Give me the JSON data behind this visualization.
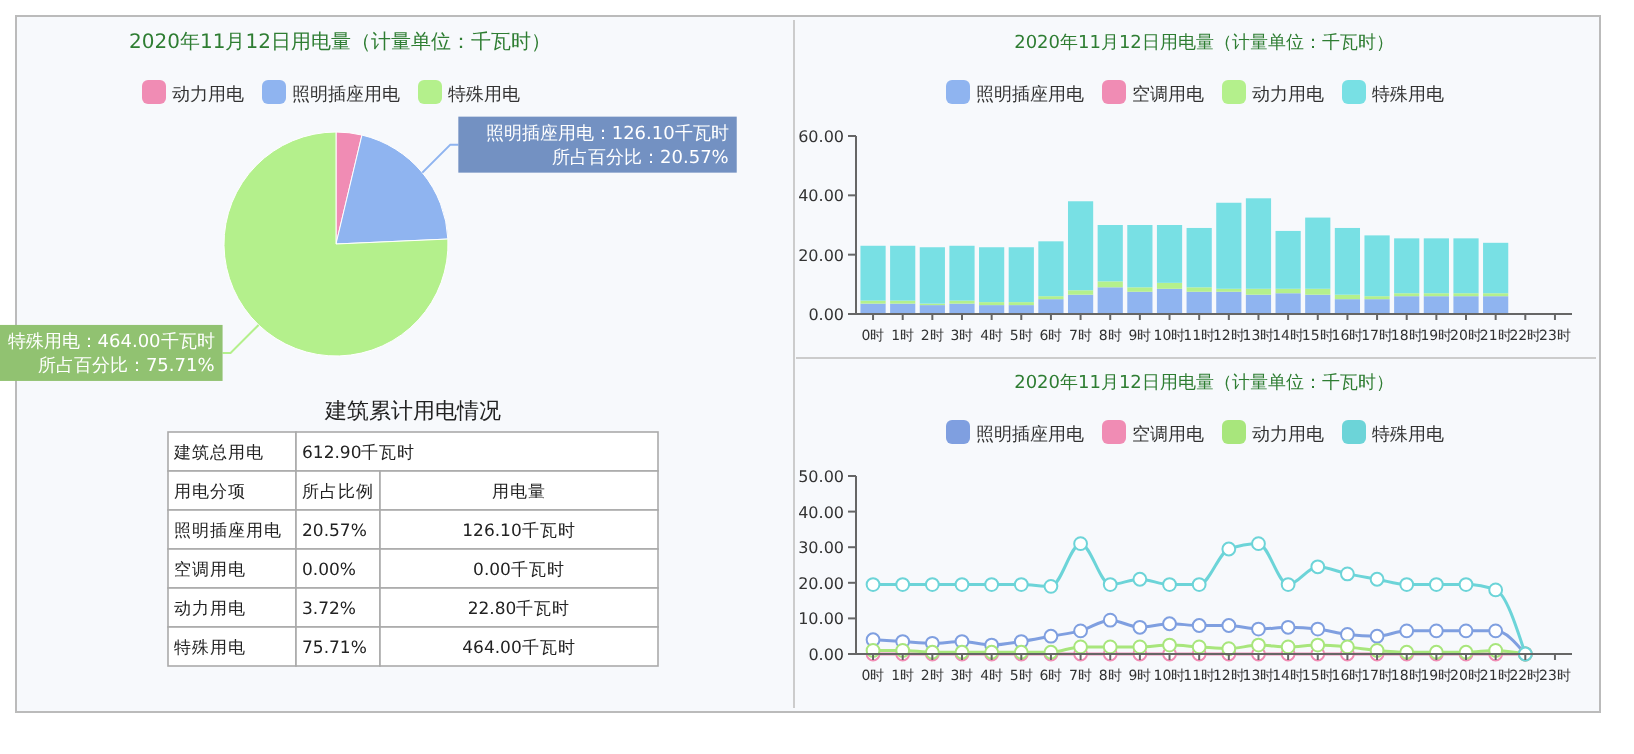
{
  "chart_data": [
    {
      "type": "pie",
      "title": "2020年11月12日用电量（计量单位：千瓦时）",
      "categories": [
        "动力用电",
        "照明插座用电",
        "特殊用电"
      ],
      "values": [
        22.8,
        126.1,
        464.0
      ],
      "colors": [
        "#f08cb4",
        "#8fb4f0",
        "#b4f08c"
      ],
      "value_labels": [
        null,
        "照明插座用电：126.10千瓦时",
        "特殊用电：464.00千瓦时"
      ],
      "annotations": [
        "所占百分比：20.57%",
        "所占百分比：75.71%"
      ],
      "legend": "top"
    },
    {
      "type": "other",
      "title": "建筑累计用电情况",
      "annotations": [
        "建筑总用电",
        "612.90千瓦时",
        "用电分项",
        "所占比例",
        "用电量",
        "照明插座用电",
        "20.57%",
        "126.10千瓦时",
        "空调用电",
        "0.00%",
        "0.00千瓦时",
        "动力用电",
        "3.72%",
        "22.80千瓦时",
        "特殊用电",
        "75.71%",
        "464.00千瓦时"
      ]
    },
    {
      "type": "bar",
      "title": "2020年11月12日用电量（计量单位：千瓦时）",
      "stacked": true,
      "legend": "top",
      "categories": [
        "0时",
        "1时",
        "2时",
        "3时",
        "4时",
        "5时",
        "6时",
        "7时",
        "8时",
        "9时",
        "10时",
        "11时",
        "12时",
        "13时",
        "14时",
        "15时",
        "16时",
        "17时",
        "18时",
        "19时",
        "20时",
        "21时",
        "22时",
        "23时"
      ],
      "ylim": [
        0,
        60
      ],
      "yticks": [
        {
          "value": 0,
          "label": "0.00"
        },
        {
          "value": 20,
          "label": "20.00"
        },
        {
          "value": 40,
          "label": "40.00"
        },
        {
          "value": 60,
          "label": "60.00"
        }
      ],
      "series": [
        {
          "name": "照明插座用电",
          "color": "#8fb4f0",
          "values": [
            3.5,
            3.5,
            3,
            3.5,
            3,
            3,
            5,
            6.5,
            9,
            7.5,
            8.5,
            7.5,
            7.5,
            6.5,
            7,
            6.5,
            5,
            5,
            6,
            6,
            6,
            6,
            null,
            null
          ]
        },
        {
          "name": "空调用电",
          "color": "#f08cb4",
          "values": [
            0,
            0,
            0,
            0,
            0,
            0,
            0,
            0,
            0,
            0,
            0,
            0,
            0,
            0,
            0,
            0,
            0,
            0,
            0,
            0,
            0,
            0,
            null,
            null
          ]
        },
        {
          "name": "动力用电",
          "color": "#b4f08c",
          "values": [
            1,
            1,
            0.5,
            1,
            1,
            1,
            1,
            1.5,
            2,
            1.5,
            2,
            1.5,
            1,
            2,
            1.5,
            2,
            1.5,
            1,
            1,
            1,
            1,
            1,
            null,
            null
          ]
        },
        {
          "name": "特殊用电",
          "color": "#78e0e4",
          "values": [
            18.5,
            18.5,
            19,
            18.5,
            18.5,
            18.5,
            18.5,
            30,
            19,
            21,
            19.5,
            20,
            29,
            30.5,
            19.5,
            24,
            22.5,
            20.5,
            18.5,
            18.5,
            18.5,
            17,
            null,
            null
          ]
        }
      ]
    },
    {
      "type": "line",
      "title": "2020年11月12日用电量（计量单位：千瓦时）",
      "legend": "top",
      "marker": "circle",
      "line_style": "solid",
      "categories": [
        "0时",
        "1时",
        "2时",
        "3时",
        "4时",
        "5时",
        "6时",
        "7时",
        "8时",
        "9时",
        "10时",
        "11时",
        "12时",
        "13时",
        "14时",
        "15时",
        "16时",
        "17时",
        "18时",
        "19时",
        "20时",
        "21时",
        "22时",
        "23时"
      ],
      "ylim": [
        0,
        50
      ],
      "yticks": [
        {
          "value": 0,
          "label": "0.00"
        },
        {
          "value": 10,
          "label": "10.00"
        },
        {
          "value": 20,
          "label": "20.00"
        },
        {
          "value": 30,
          "label": "30.00"
        },
        {
          "value": 40,
          "label": "40.00"
        },
        {
          "value": 50,
          "label": "50.00"
        }
      ],
      "series": [
        {
          "name": "照明插座用电",
          "color": "#7f9fe0",
          "values": [
            4,
            3.5,
            3,
            3.5,
            2.5,
            3.5,
            5,
            6.5,
            9.5,
            7.5,
            8.5,
            8,
            8,
            7,
            7.5,
            7,
            5.5,
            5,
            6.5,
            6.5,
            6.5,
            6.5,
            0,
            null
          ]
        },
        {
          "name": "空调用电",
          "color": "#f08cb4",
          "values": [
            0,
            0,
            0,
            0,
            0,
            0,
            0,
            0,
            0,
            0,
            0,
            0,
            0,
            0,
            0,
            0,
            0,
            0,
            0,
            0,
            0,
            0,
            0,
            null
          ]
        },
        {
          "name": "动力用电",
          "color": "#a8e67c",
          "values": [
            1,
            1,
            0.5,
            0.5,
            0.5,
            0.5,
            0.5,
            2,
            2,
            2,
            2.5,
            2,
            1.5,
            2.5,
            2,
            2.5,
            2,
            1,
            0.5,
            0.5,
            0.5,
            1,
            0,
            null
          ]
        },
        {
          "name": "特殊用电",
          "color": "#6cd4d8",
          "values": [
            19.5,
            19.5,
            19.5,
            19.5,
            19.5,
            19.5,
            19,
            31,
            19.5,
            21,
            19.5,
            19.5,
            29.5,
            31,
            19.5,
            24.5,
            22.5,
            21,
            19.5,
            19.5,
            19.5,
            18,
            0,
            null
          ]
        }
      ]
    }
  ]
}
